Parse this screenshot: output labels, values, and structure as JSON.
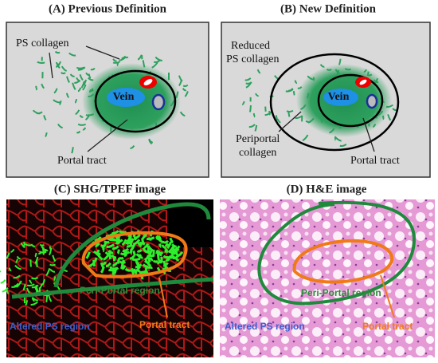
{
  "panels": [
    {
      "title": "(A) Previous Definition",
      "ps_collagen": "PS collagen",
      "vein": "Vein",
      "portal_tract": "Portal tract"
    },
    {
      "title": "(B) New Definition",
      "ps_collagen": [
        "Reduced",
        "PS collagen"
      ],
      "vein": "Vein",
      "periportal": [
        "Periportal",
        "collagen"
      ],
      "portal_tract": "Portal tract"
    },
    {
      "title": "(C) SHG/TPEF image",
      "peri_portal": "Peri-Portal region",
      "altered_ps": "Altered PS region",
      "portal_tract": "Portal tract"
    },
    {
      "title": "(D) H&E image",
      "peri_portal": "Peri-Portal region",
      "altered_ps": "Altered PS region",
      "portal_tract": "Portal tract"
    }
  ]
}
